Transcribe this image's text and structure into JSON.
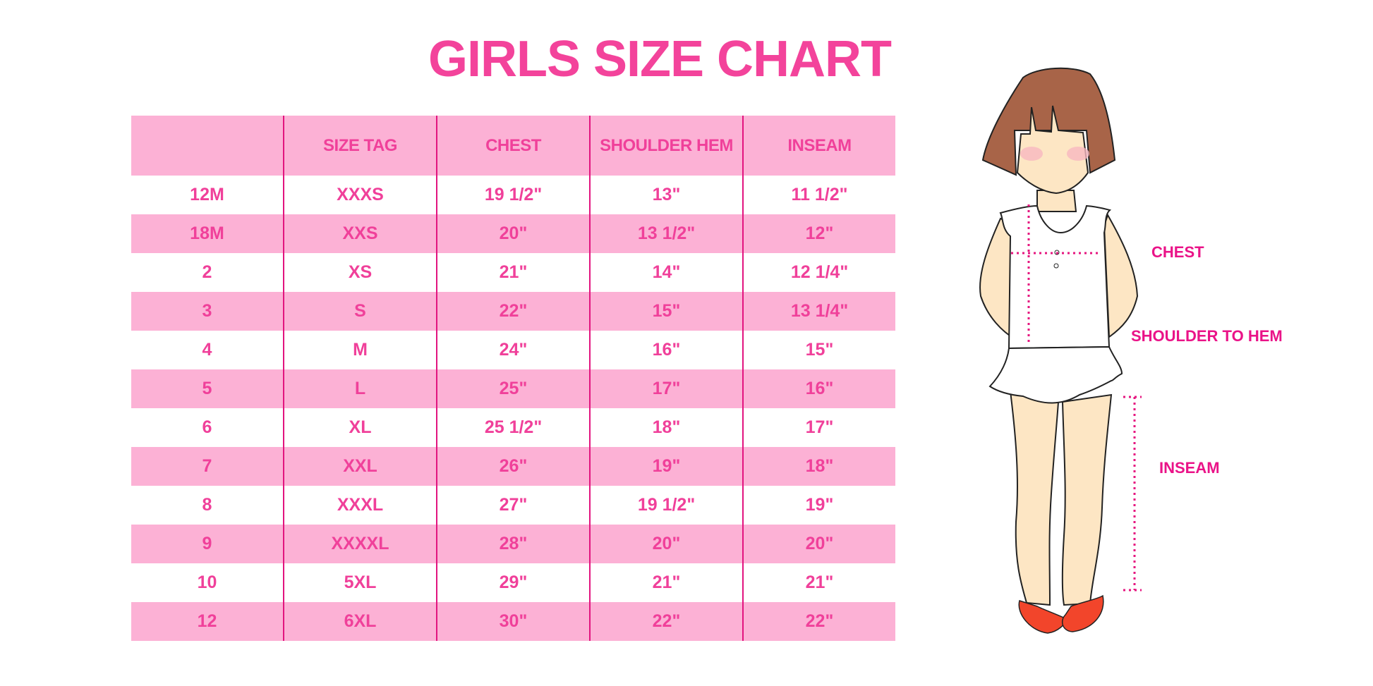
{
  "title": "GIRLS SIZE CHART",
  "colors": {
    "title": "#f3439b",
    "row_pink": "#fcb1d5",
    "text": "#f0409a",
    "divider": "#e2147f",
    "label": "#ea1388"
  },
  "table": {
    "headers": [
      "",
      "SIZE TAG",
      "CHEST",
      "SHOULDER HEM",
      "INSEAM"
    ],
    "rows": [
      [
        "12M",
        "XXXS",
        "19 1/2\"",
        "13\"",
        "11 1/2\""
      ],
      [
        "18M",
        "XXS",
        "20\"",
        "13 1/2\"",
        "12\""
      ],
      [
        "2",
        "XS",
        "21\"",
        "14\"",
        "12 1/4\""
      ],
      [
        "3",
        "S",
        "22\"",
        "15\"",
        "13 1/4\""
      ],
      [
        "4",
        "M",
        "24\"",
        "16\"",
        "15\""
      ],
      [
        "5",
        "L",
        "25\"",
        "17\"",
        "16\""
      ],
      [
        "6",
        "XL",
        "25 1/2\"",
        "18\"",
        "17\""
      ],
      [
        "7",
        "XXL",
        "26\"",
        "19\"",
        "18\""
      ],
      [
        "8",
        "XXXL",
        "27\"",
        "19 1/2\"",
        "19\""
      ],
      [
        "9",
        "XXXXL",
        "28\"",
        "20\"",
        "20\""
      ],
      [
        "10",
        "5XL",
        "29\"",
        "21\"",
        "21\""
      ],
      [
        "12",
        "6XL",
        "30\"",
        "22\"",
        "22\""
      ]
    ]
  },
  "figure": {
    "labels": {
      "chest": "CHEST",
      "shoulder_to_hem": "SHOULDER TO HEM",
      "inseam": "INSEAM"
    }
  }
}
